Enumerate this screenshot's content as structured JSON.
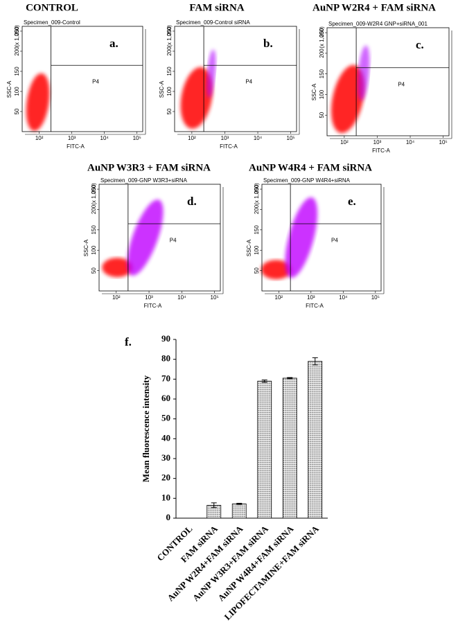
{
  "chart_data": [
    {
      "type": "scatter",
      "title": "CONTROL",
      "subtitle": "Specimen_009-Control",
      "panel_label": "a.",
      "xlabel": "FITC-A",
      "ylabel": "SSC-A",
      "y_unit": "(x 1,000)",
      "gate_label": "P4",
      "gate": {
        "x": 230,
        "y": 165
      },
      "xlog": true,
      "xlim": [
        30,
        150000
      ],
      "xticks": [
        {
          "value": 100,
          "label": "10²"
        },
        {
          "value": 1000,
          "label": "10³"
        },
        {
          "value": 10000,
          "label": "10⁴"
        },
        {
          "value": 100000,
          "label": "10⁵"
        }
      ],
      "ylim": [
        0,
        262
      ],
      "yticks": [
        50,
        100,
        150,
        200,
        250
      ]
    },
    {
      "type": "scatter",
      "title": "FAM siRNA",
      "subtitle": "Specimen_009-Control siRNA",
      "panel_label": "b.",
      "xlabel": "FITC-A",
      "ylabel": "SSC-A",
      "y_unit": "(x 1,000)",
      "gate_label": "P4",
      "gate": {
        "x": 230,
        "y": 165
      },
      "xlog": true,
      "xlim": [
        30,
        150000
      ],
      "xticks": [
        {
          "value": 100,
          "label": "10²"
        },
        {
          "value": 1000,
          "label": "10³"
        },
        {
          "value": 10000,
          "label": "10⁴"
        },
        {
          "value": 100000,
          "label": "10⁵"
        }
      ],
      "ylim": [
        0,
        262
      ],
      "yticks": [
        50,
        100,
        150,
        200,
        250
      ]
    },
    {
      "type": "scatter",
      "title": "AuNP W2R4 + FAM siRNA",
      "subtitle": "Specimen_009-W2R4 GNP+siRNA_001",
      "panel_label": "c.",
      "xlabel": "FITC-A",
      "ylabel": "SSC-A",
      "y_unit": "(x 1,000)",
      "gate_label": "P4",
      "gate": {
        "x": 230,
        "y": 165
      },
      "xlog": true,
      "xlim": [
        30,
        150000
      ],
      "xticks": [
        {
          "value": 100,
          "label": "10²"
        },
        {
          "value": 1000,
          "label": "10³"
        },
        {
          "value": 10000,
          "label": "10⁴"
        },
        {
          "value": 100000,
          "label": "10⁵"
        }
      ],
      "ylim": [
        0,
        262
      ],
      "yticks": [
        50,
        100,
        150,
        200,
        250
      ]
    },
    {
      "type": "scatter",
      "title": "AuNP W3R3 + FAM siRNA",
      "subtitle": "Specimen_009-GNP W3R3+siRNA",
      "panel_label": "d.",
      "xlabel": "FITC-A",
      "ylabel": "SSC-A",
      "y_unit": "(x 1,000)",
      "gate_label": "P4",
      "gate": {
        "x": 230,
        "y": 165
      },
      "xlog": true,
      "xlim": [
        30,
        150000
      ],
      "xticks": [
        {
          "value": 100,
          "label": "10²"
        },
        {
          "value": 1000,
          "label": "10³"
        },
        {
          "value": 10000,
          "label": "10⁴"
        },
        {
          "value": 100000,
          "label": "10⁵"
        }
      ],
      "ylim": [
        0,
        262
      ],
      "yticks": [
        50,
        100,
        150,
        200,
        250
      ]
    },
    {
      "type": "scatter",
      "title": "AuNP W4R4 + FAM siRNA",
      "subtitle": "Specimen_009-GNP W4R4+siRNA",
      "panel_label": "e.",
      "xlabel": "FITC-A",
      "ylabel": "SSC-A",
      "y_unit": "(x 1,000)",
      "gate_label": "P4",
      "gate": {
        "x": 230,
        "y": 165
      },
      "xlog": true,
      "xlim": [
        30,
        150000
      ],
      "xticks": [
        {
          "value": 100,
          "label": "10²"
        },
        {
          "value": 1000,
          "label": "10³"
        },
        {
          "value": 10000,
          "label": "10⁴"
        },
        {
          "value": 100000,
          "label": "10⁵"
        }
      ],
      "ylim": [
        0,
        262
      ],
      "yticks": [
        50,
        100,
        150,
        200,
        250
      ]
    },
    {
      "type": "bar",
      "panel_label": "f.",
      "ylabel": "Mean fluorescence intensity",
      "categories": [
        "CONTROL",
        "FAM siRNA",
        "AuNP W2R4+FAM siRNA",
        "AuNP W3R3+FAM siRNA",
        "AuNP W4R4+FAM siRNA",
        "LIPOFECTAMINE+FAM siRNA"
      ],
      "values": [
        0,
        6.5,
        7.2,
        69,
        70.5,
        79
      ],
      "errors": [
        0,
        1.2,
        0.3,
        0.6,
        0.3,
        1.8
      ],
      "color": "#b8b8b8",
      "ylim": [
        0,
        90
      ],
      "yticks": [
        0,
        10,
        20,
        30,
        40,
        50,
        60,
        70,
        80,
        90
      ]
    }
  ]
}
